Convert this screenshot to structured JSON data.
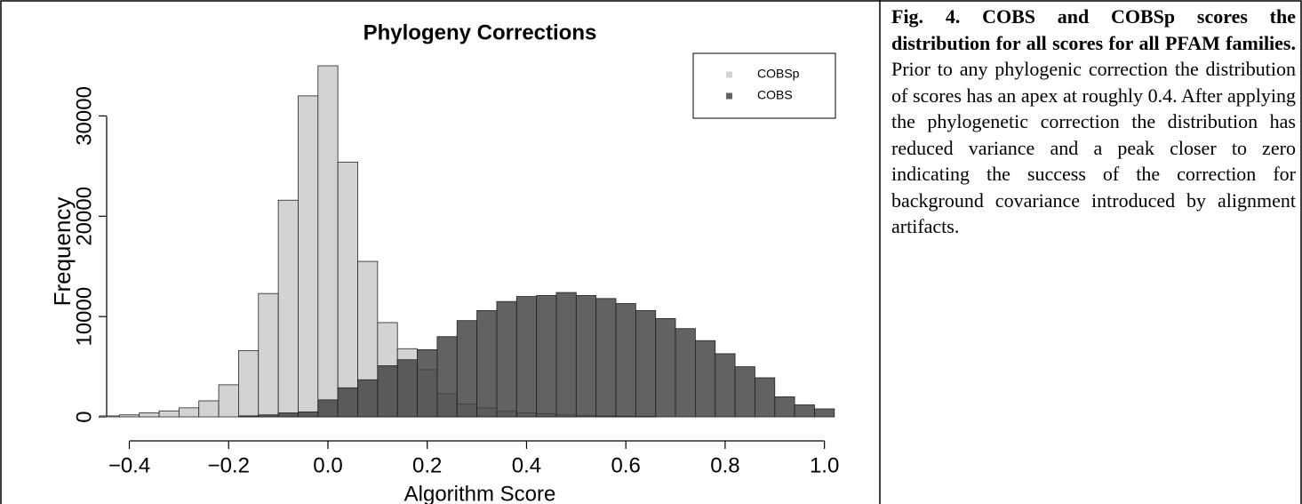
{
  "chart_data": {
    "type": "histogram",
    "title": "Phylogeny Corrections",
    "xlabel": "Algorithm Score",
    "ylabel": "Frequency",
    "bins": [
      -0.46,
      -0.42,
      -0.38,
      -0.34,
      -0.3,
      -0.26,
      -0.22,
      -0.18,
      -0.14,
      -0.1,
      -0.06,
      -0.02,
      0.02,
      0.06,
      0.1,
      0.14,
      0.18,
      0.22,
      0.26,
      0.3,
      0.34,
      0.38,
      0.42,
      0.46,
      0.5,
      0.54,
      0.58,
      0.62,
      0.66,
      0.7,
      0.74,
      0.78,
      0.82,
      0.86,
      0.9,
      0.94,
      0.98,
      1.02
    ],
    "series": [
      {
        "name": "COBSp",
        "color": "#d3d3d3",
        "values": [
          100,
          200,
          400,
          600,
          900,
          1600,
          3200,
          6600,
          12300,
          21600,
          32000,
          35000,
          25400,
          15500,
          9400,
          6800,
          4700,
          2300,
          1300,
          900,
          600,
          400,
          300,
          200,
          150,
          100,
          80,
          50,
          0,
          0,
          0,
          0,
          0,
          0,
          0,
          0,
          0
        ]
      },
      {
        "name": "COBS",
        "color": "#404040",
        "values": [
          0,
          0,
          0,
          0,
          0,
          0,
          0,
          100,
          200,
          400,
          500,
          1700,
          2900,
          3700,
          5100,
          5700,
          6700,
          8000,
          9600,
          10600,
          11500,
          12000,
          12100,
          12400,
          12100,
          11800,
          11300,
          10600,
          9800,
          8800,
          7600,
          6300,
          5000,
          3900,
          2000,
          1200,
          800
        ]
      }
    ],
    "xlim": [
      -0.46,
      1.04
    ],
    "ylim": [
      0,
      35000
    ],
    "xticks": [
      {
        "value": -0.4,
        "label": "−0.4"
      },
      {
        "value": -0.2,
        "label": "−0.2"
      },
      {
        "value": 0,
        "label": "0.0"
      },
      0.2,
      0.4,
      0.6,
      0.8,
      {
        "value": 1,
        "label": "1.0"
      }
    ],
    "yticks": [
      0,
      10000,
      20000,
      30000
    ],
    "legend": "top-right"
  },
  "caption": {
    "bold": "Fig. 4.  COBS and COBSp scores the distribution for all scores for all PFAM families.",
    "text": "Prior to any phylogenic correction the distribution of scores has an apex at roughly 0.4. After applying the phylogenetic correction the distribution has reduced variance and a peak closer to zero indicating the success of the correction for background covariance introduced by alignment artifacts."
  }
}
